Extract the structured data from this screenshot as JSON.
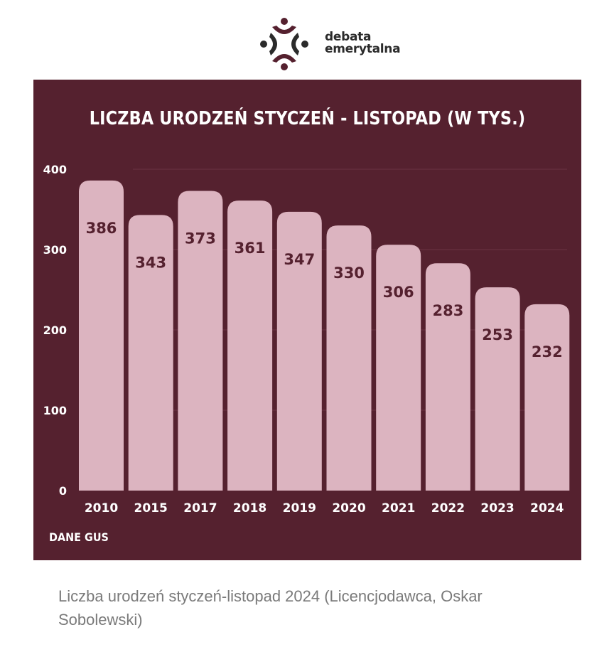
{
  "logo": {
    "line1": "debata",
    "line2": "emerytalna",
    "mark_color": "#55212f",
    "dark_color": "#2b2b2b"
  },
  "chart_data": {
    "type": "bar",
    "title": "LICZBA URODZEŃ STYCZEŃ - LISTOPAD (W TYS.)",
    "categories": [
      "2010",
      "2015",
      "2017",
      "2018",
      "2019",
      "2020",
      "2021",
      "2022",
      "2023",
      "2024"
    ],
    "values": [
      386,
      343,
      373,
      361,
      347,
      330,
      306,
      283,
      253,
      232
    ],
    "data_labels": [
      "386",
      "343",
      "373",
      "361",
      "347",
      "330",
      "306",
      "283",
      "253",
      "232"
    ],
    "y_ticks": [
      "0",
      "100",
      "200",
      "300",
      "400"
    ],
    "ylim": [
      0,
      400
    ],
    "xlabel": "",
    "ylabel": "",
    "grid": true,
    "bar_color": "#dcb4c0",
    "background_color": "#55212f",
    "label_color": "#55212f"
  },
  "source": "DANE GUS",
  "caption": "Liczba urodzeń styczeń-listopad 2024 (Licencjodawca, Oskar Sobolewski)"
}
